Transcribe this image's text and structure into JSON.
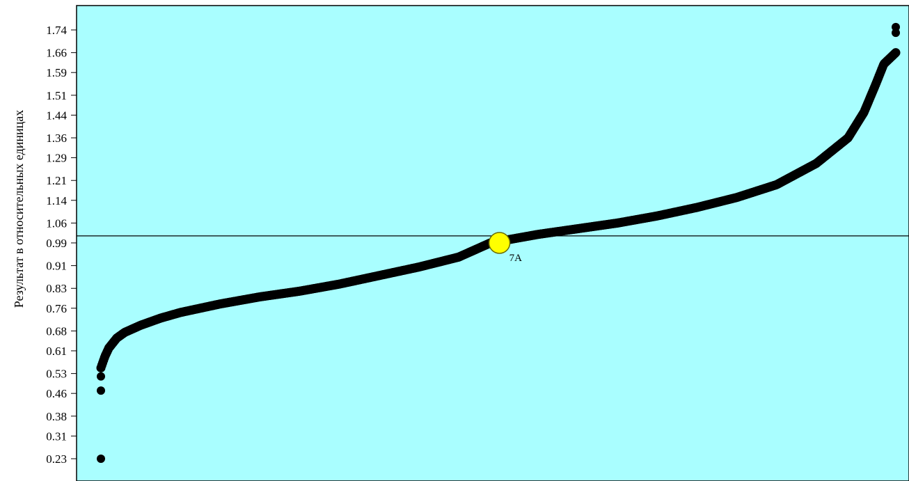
{
  "chart_data": {
    "type": "scatter",
    "title": "",
    "xlabel": "",
    "ylabel": "Результат в относительных единицах",
    "yticks": [
      "0.23",
      "0.31",
      "0.38",
      "0.46",
      "0.53",
      "0.61",
      "0.68",
      "0.76",
      "0.83",
      "0.91",
      "0.99",
      "1.06",
      "1.14",
      "1.21",
      "1.29",
      "1.36",
      "1.44",
      "1.51",
      "1.59",
      "1.66",
      "1.74"
    ],
    "ylim": [
      0.15,
      1.8
    ],
    "reference_line_y": 1.0,
    "background_color": "#a9feff",
    "point_color": "#000000",
    "highlight_color": "#ffff00",
    "highlight": {
      "label": "7A",
      "rank_fraction": 0.49,
      "value": 0.99
    },
    "outliers": [
      {
        "rank_fraction": 0.0,
        "value": 0.23
      },
      {
        "rank_fraction": 0.0,
        "value": 0.47
      },
      {
        "rank_fraction": 0.0,
        "value": 0.52
      },
      {
        "rank_fraction": 1.0,
        "value": 1.73
      },
      {
        "rank_fraction": 1.0,
        "value": 1.75
      }
    ],
    "curve": [
      [
        0.0,
        0.55
      ],
      [
        0.005,
        0.59
      ],
      [
        0.01,
        0.62
      ],
      [
        0.02,
        0.655
      ],
      [
        0.03,
        0.675
      ],
      [
        0.05,
        0.7
      ],
      [
        0.075,
        0.725
      ],
      [
        0.1,
        0.745
      ],
      [
        0.15,
        0.775
      ],
      [
        0.2,
        0.8
      ],
      [
        0.25,
        0.82
      ],
      [
        0.3,
        0.845
      ],
      [
        0.35,
        0.875
      ],
      [
        0.4,
        0.905
      ],
      [
        0.45,
        0.94
      ],
      [
        0.49,
        0.99
      ],
      [
        0.55,
        1.02
      ],
      [
        0.6,
        1.04
      ],
      [
        0.65,
        1.06
      ],
      [
        0.7,
        1.085
      ],
      [
        0.75,
        1.115
      ],
      [
        0.8,
        1.15
      ],
      [
        0.85,
        1.195
      ],
      [
        0.9,
        1.27
      ],
      [
        0.94,
        1.36
      ],
      [
        0.96,
        1.45
      ],
      [
        0.975,
        1.55
      ],
      [
        0.985,
        1.62
      ],
      [
        1.0,
        1.66
      ]
    ]
  }
}
